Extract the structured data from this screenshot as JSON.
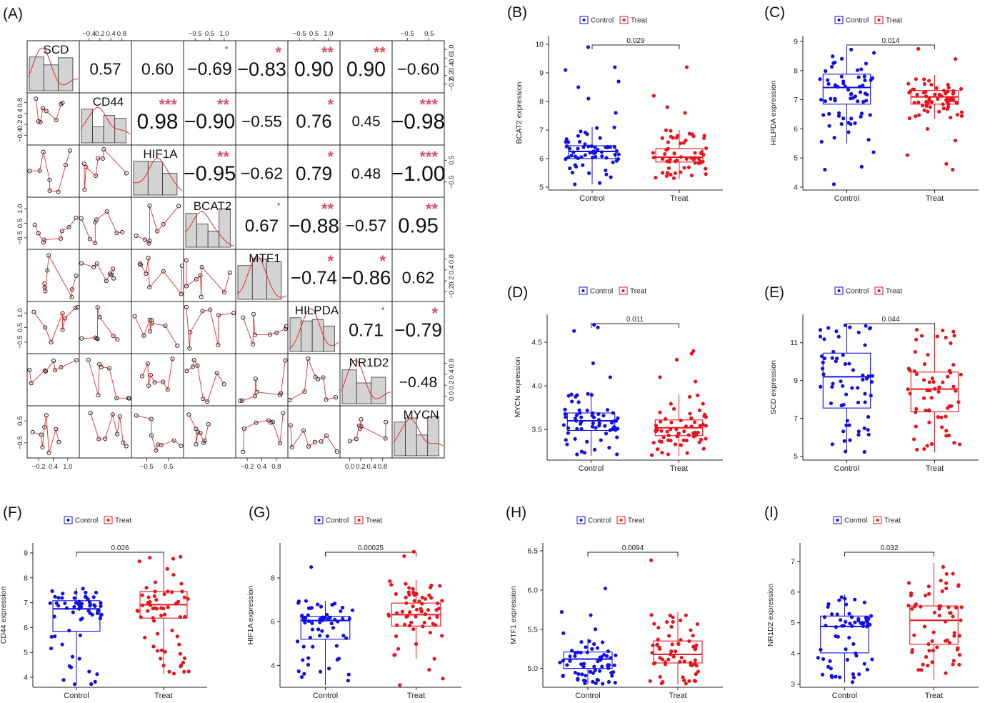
{
  "colors": {
    "control": "#1010e6",
    "treat": "#e8141c",
    "star": "#d85068",
    "hist_fill": "#d3d3d3",
    "fit_line": "#e03030"
  },
  "correlation_matrix": {
    "panel_label": "(A)",
    "genes": [
      "SCD",
      "CD44",
      "HIF1A",
      "BCAT2",
      "MTF1",
      "HILPDA",
      "NR1D2",
      "MYCN"
    ],
    "upper_cells": [
      {
        "row": 0,
        "col": 1,
        "r": "0.57",
        "stars": ""
      },
      {
        "row": 0,
        "col": 2,
        "r": "0.60",
        "stars": ""
      },
      {
        "row": 0,
        "col": 3,
        "r": "−0.69",
        "stars": "·"
      },
      {
        "row": 0,
        "col": 4,
        "r": "−0.83",
        "stars": "*"
      },
      {
        "row": 0,
        "col": 5,
        "r": "0.90",
        "stars": "**"
      },
      {
        "row": 0,
        "col": 6,
        "r": "0.90",
        "stars": "**"
      },
      {
        "row": 0,
        "col": 7,
        "r": "−0.60",
        "stars": ""
      },
      {
        "row": 1,
        "col": 2,
        "r": "0.98",
        "stars": "***"
      },
      {
        "row": 1,
        "col": 3,
        "r": "−0.90",
        "stars": "**"
      },
      {
        "row": 1,
        "col": 4,
        "r": "−0.55",
        "stars": ""
      },
      {
        "row": 1,
        "col": 5,
        "r": "0.76",
        "stars": "*"
      },
      {
        "row": 1,
        "col": 6,
        "r": "0.45",
        "stars": ""
      },
      {
        "row": 1,
        "col": 7,
        "r": "−0.98",
        "stars": "***"
      },
      {
        "row": 2,
        "col": 3,
        "r": "−0.95",
        "stars": "**"
      },
      {
        "row": 2,
        "col": 4,
        "r": "−0.62",
        "stars": ""
      },
      {
        "row": 2,
        "col": 5,
        "r": "0.79",
        "stars": "*"
      },
      {
        "row": 2,
        "col": 6,
        "r": "0.48",
        "stars": ""
      },
      {
        "row": 2,
        "col": 7,
        "r": "−1.00",
        "stars": "***"
      },
      {
        "row": 3,
        "col": 4,
        "r": "0.67",
        "stars": "·"
      },
      {
        "row": 3,
        "col": 5,
        "r": "−0.88",
        "stars": "**"
      },
      {
        "row": 3,
        "col": 6,
        "r": "−0.57",
        "stars": ""
      },
      {
        "row": 3,
        "col": 7,
        "r": "0.95",
        "stars": "**"
      },
      {
        "row": 4,
        "col": 5,
        "r": "−0.74",
        "stars": "*"
      },
      {
        "row": 4,
        "col": 6,
        "r": "−0.86",
        "stars": "*"
      },
      {
        "row": 4,
        "col": 7,
        "r": "0.62",
        "stars": ""
      },
      {
        "row": 5,
        "col": 6,
        "r": "0.71",
        "stars": "·"
      },
      {
        "row": 5,
        "col": 7,
        "r": "−0.79",
        "stars": "*"
      },
      {
        "row": 6,
        "col": 7,
        "r": "−0.48",
        "stars": ""
      }
    ],
    "top_axis": [
      {
        "col": 1,
        "ticks": [
          "−0.4",
          "0.2",
          "0.4",
          "0.8"
        ]
      },
      {
        "col": 3,
        "ticks": [
          "−0.5",
          "0.5",
          "1.0"
        ]
      },
      {
        "col": 5,
        "ticks": [
          "−0.5",
          "0.5",
          "1.0"
        ]
      },
      {
        "col": 7,
        "ticks": [
          "−0.5",
          "0.5"
        ]
      }
    ],
    "bottom_axis": [
      {
        "col": 0,
        "ticks": [
          "−0.2",
          "0.4",
          "1.0"
        ]
      },
      {
        "col": 2,
        "ticks": [
          "−0.5",
          "0.5"
        ]
      },
      {
        "col": 4,
        "ticks": [
          "−0.2",
          "0.4",
          "0.8"
        ]
      },
      {
        "col": 6,
        "ticks": [
          "0.0",
          "0.2",
          "0.4",
          "0.8"
        ]
      }
    ],
    "left_axis": [
      {
        "row": 1,
        "ticks": [
          "0.8",
          "0.4",
          "0.2",
          "−0.4"
        ]
      },
      {
        "row": 3,
        "ticks": [
          "1.0",
          "0.5",
          "−0.5"
        ]
      },
      {
        "row": 5,
        "ticks": [
          "1.0",
          "0.5",
          "−0.5"
        ]
      },
      {
        "row": 7,
        "ticks": [
          "0.5",
          "−0.5"
        ]
      }
    ],
    "right_axis": [
      {
        "row": 0,
        "ticks": [
          "1.0",
          "0.6",
          "0.4",
          "0.2",
          "−0.2"
        ]
      },
      {
        "row": 2,
        "ticks": [
          "0.5",
          "−0.5"
        ]
      },
      {
        "row": 4,
        "ticks": [
          "0.8",
          "0.4",
          "0.2",
          "−0.2"
        ]
      },
      {
        "row": 6,
        "ticks": [
          "0.8",
          "0.4",
          "0.2",
          "0.0"
        ]
      }
    ]
  },
  "chart_data": [
    {
      "panel": "(B)",
      "type": "box",
      "ylabel": "BCAT2 expression",
      "categories": [
        "Control",
        "Treat"
      ],
      "legend": [
        "Control",
        "Treat"
      ],
      "p_value": "0.029",
      "yticks": [
        5,
        6,
        7,
        8,
        9,
        10
      ],
      "ylim": [
        4.9,
        10.3
      ],
      "boxes": [
        {
          "q1": 6.0,
          "median": 6.25,
          "q3": 6.45,
          "whisker_low": 5.1,
          "whisker_high": 7.1,
          "outliers": [
            9.9,
            9.2,
            9.1,
            8.7,
            8.5,
            8.1,
            7.6
          ]
        },
        {
          "q1": 5.88,
          "median": 6.05,
          "q3": 6.35,
          "whisker_low": 5.3,
          "whisker_high": 7.0,
          "outliers": [
            9.2,
            8.2,
            7.8,
            7.6
          ]
        }
      ]
    },
    {
      "panel": "(C)",
      "type": "box",
      "ylabel": "HILPDA expression",
      "categories": [
        "Control",
        "Treat"
      ],
      "legend": [
        "Control",
        "Treat"
      ],
      "p_value": "0.014",
      "yticks": [
        4,
        5,
        6,
        7,
        8,
        9
      ],
      "ylim": [
        3.9,
        9.2
      ],
      "boxes": [
        {
          "q1": 6.85,
          "median": 7.42,
          "q3": 7.88,
          "whisker_low": 5.5,
          "whisker_high": 8.85,
          "outliers": [
            5.2,
            4.7,
            4.6,
            4.1
          ]
        },
        {
          "q1": 6.85,
          "median": 7.1,
          "q3": 7.32,
          "whisker_low": 6.35,
          "whisker_high": 7.85,
          "outliers": [
            8.75,
            8.4,
            6.0,
            5.6,
            5.1,
            4.8,
            4.6
          ]
        }
      ]
    },
    {
      "panel": "(D)",
      "type": "box",
      "ylabel": "MYCN expression",
      "categories": [
        "Control",
        "Treat"
      ],
      "legend": [
        "Control",
        "Treat"
      ],
      "p_value": "0.011",
      "yticks": [
        3.5,
        4.0,
        4.5
      ],
      "ylim": [
        3.15,
        4.82
      ],
      "boxes": [
        {
          "q1": 3.49,
          "median": 3.6,
          "q3": 3.69,
          "whisker_low": 3.2,
          "whisker_high": 3.93,
          "outliers": [
            4.7,
            4.67,
            4.63,
            4.26,
            4.1
          ]
        },
        {
          "q1": 3.43,
          "median": 3.52,
          "q3": 3.61,
          "whisker_low": 3.2,
          "whisker_high": 3.9,
          "outliers": [
            4.4,
            4.37,
            4.3,
            4.1,
            4.05
          ]
        }
      ]
    },
    {
      "panel": "(E)",
      "type": "box",
      "ylabel": "SCD expression",
      "categories": [
        "Control",
        "Treat"
      ],
      "legend": [
        "Control",
        "Treat"
      ],
      "p_value": "0.044",
      "yticks": [
        5,
        7,
        9,
        11
      ],
      "ylim": [
        4.8,
        12.5
      ],
      "boxes": [
        {
          "q1": 7.55,
          "median": 9.2,
          "q3": 10.45,
          "whisker_low": 5.2,
          "whisker_high": 12.0,
          "outliers": []
        },
        {
          "q1": 7.35,
          "median": 8.55,
          "q3": 9.45,
          "whisker_low": 5.2,
          "whisker_high": 11.8,
          "outliers": []
        }
      ]
    },
    {
      "panel": "(F)",
      "type": "box",
      "ylabel": "CD44 expression",
      "categories": [
        "Control",
        "Treat"
      ],
      "legend": [
        "Control",
        "Treat"
      ],
      "p_value": "0.026",
      "yticks": [
        4,
        5,
        6,
        7,
        8,
        9
      ],
      "ylim": [
        3.6,
        9.4
      ],
      "boxes": [
        {
          "q1": 5.85,
          "median": 6.75,
          "q3": 7.08,
          "whisker_low": 3.7,
          "whisker_high": 7.6,
          "outliers": []
        },
        {
          "q1": 6.38,
          "median": 6.92,
          "q3": 7.45,
          "whisker_low": 4.15,
          "whisker_high": 8.85,
          "outliers": []
        }
      ]
    },
    {
      "panel": "(G)",
      "type": "box",
      "ylabel": "HIF1A expression",
      "categories": [
        "Control",
        "Treat"
      ],
      "legend": [
        "Control",
        "Treat"
      ],
      "p_value": "0.00025",
      "yticks": [
        4,
        6,
        8
      ],
      "ylim": [
        3.0,
        9.6
      ],
      "boxes": [
        {
          "q1": 5.2,
          "median": 6.05,
          "q3": 6.25,
          "whisker_low": 3.1,
          "whisker_high": 6.95,
          "outliers": [
            8.5
          ]
        },
        {
          "q1": 5.8,
          "median": 6.32,
          "q3": 6.85,
          "whisker_low": 4.3,
          "whisker_high": 7.9,
          "outliers": [
            9.2,
            9.0,
            3.8,
            3.4,
            3.1
          ]
        }
      ]
    },
    {
      "panel": "(H)",
      "type": "box",
      "ylabel": "MTF1 expression",
      "categories": [
        "Control",
        "Treat"
      ],
      "legend": [
        "Control",
        "Treat"
      ],
      "p_value": "0.0094",
      "yticks": [
        5.0,
        5.5,
        6.0,
        6.5
      ],
      "ylim": [
        4.76,
        6.6
      ],
      "boxes": [
        {
          "q1": 5.0,
          "median": 5.12,
          "q3": 5.21,
          "whisker_low": 4.8,
          "whisker_high": 5.38,
          "outliers": [
            6.02,
            5.72,
            5.68,
            5.5,
            5.45
          ]
        },
        {
          "q1": 5.07,
          "median": 5.18,
          "q3": 5.35,
          "whisker_low": 4.8,
          "whisker_high": 5.72,
          "outliers": [
            6.38
          ]
        }
      ]
    },
    {
      "panel": "(I)",
      "type": "box",
      "ylabel": "NR1D2 expression",
      "categories": [
        "Control",
        "Treat"
      ],
      "legend": [
        "Control",
        "Treat"
      ],
      "p_value": "0.032",
      "yticks": [
        3,
        4,
        5,
        6,
        7
      ],
      "ylim": [
        2.9,
        7.6
      ],
      "boxes": [
        {
          "q1": 4.02,
          "median": 4.88,
          "q3": 5.22,
          "whisker_low": 3.05,
          "whisker_high": 5.92,
          "outliers": []
        },
        {
          "q1": 4.3,
          "median": 5.08,
          "q3": 5.55,
          "whisker_low": 3.15,
          "whisker_high": 6.95,
          "outliers": []
        }
      ]
    }
  ]
}
